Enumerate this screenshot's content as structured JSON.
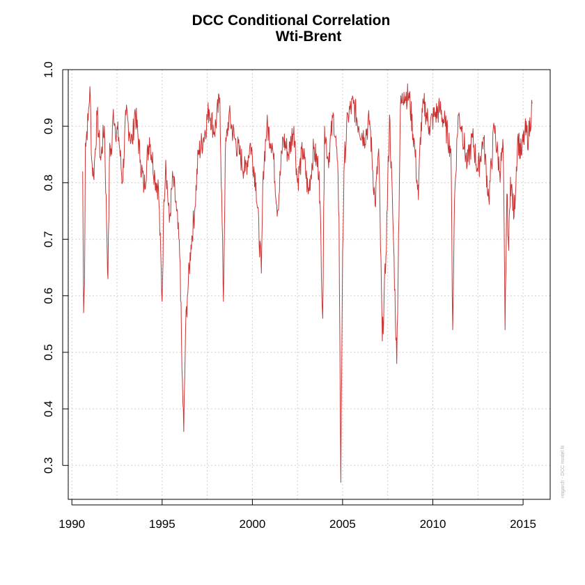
{
  "chart_data": {
    "type": "line",
    "title": "DCC Conditional Correlation",
    "subtitle": "Wti-Brent",
    "xlabel": "",
    "ylabel": "",
    "xlim": [
      1989.8,
      2016.5
    ],
    "ylim": [
      0.24,
      1.0
    ],
    "x_ticks": [
      1990,
      1995,
      2000,
      2005,
      2010,
      2015
    ],
    "y_ticks": [
      0.3,
      0.4,
      0.5,
      0.6,
      0.7,
      0.8,
      0.9,
      1.0
    ],
    "grid": true,
    "legend": "none",
    "watermark": "rmgarch - DCC model fit",
    "series": [
      {
        "color": "#cc3333",
        "x": [
          1990.6,
          1990.65,
          1990.7,
          1990.75,
          1990.9,
          1991.0,
          1991.1,
          1991.2,
          1991.3,
          1991.4,
          1991.5,
          1991.6,
          1991.8,
          1992.0,
          1992.1,
          1992.2,
          1992.3,
          1992.4,
          1992.6,
          1992.8,
          1993.0,
          1993.2,
          1993.35,
          1993.5,
          1993.8,
          1994.0,
          1994.3,
          1994.6,
          1994.8,
          1995.0,
          1995.1,
          1995.2,
          1995.4,
          1995.6,
          1995.8,
          1996.0,
          1996.1,
          1996.2,
          1996.3,
          1996.4,
          1996.6,
          1996.8,
          1997.0,
          1997.3,
          1997.6,
          1997.9,
          1998.2,
          1998.4,
          1998.5,
          1998.7,
          1999.0,
          1999.3,
          1999.6,
          1999.9,
          2000.2,
          2000.5,
          2000.6,
          2000.8,
          2001.1,
          2001.4,
          2001.7,
          2002.0,
          2002.3,
          2002.5,
          2002.8,
          2003.1,
          2003.4,
          2003.7,
          2003.9,
          2004.0,
          2004.2,
          2004.5,
          2004.7,
          2004.8,
          2004.9,
          2005.0,
          2005.1,
          2005.3,
          2005.6,
          2005.9,
          2006.2,
          2006.5,
          2006.8,
          2007.0,
          2007.2,
          2007.4,
          2007.6,
          2007.8,
          2008.0,
          2008.2,
          2008.4,
          2008.7,
          2009.0,
          2009.2,
          2009.3,
          2009.5,
          2009.8,
          2010.1,
          2010.4,
          2010.7,
          2011.0,
          2011.1,
          2011.2,
          2011.4,
          2011.6,
          2011.9,
          2012.2,
          2012.5,
          2012.8,
          2013.1,
          2013.4,
          2013.7,
          2013.9,
          2014.0,
          2014.1,
          2014.2,
          2014.3,
          2014.5,
          2014.7,
          2014.9,
          2015.1,
          2015.3,
          2015.5
        ],
        "values": [
          0.82,
          0.57,
          0.62,
          0.87,
          0.91,
          0.97,
          0.84,
          0.81,
          0.86,
          0.92,
          0.88,
          0.84,
          0.9,
          0.63,
          0.87,
          0.85,
          0.93,
          0.9,
          0.88,
          0.8,
          0.92,
          0.89,
          0.87,
          0.93,
          0.84,
          0.79,
          0.88,
          0.81,
          0.79,
          0.59,
          0.77,
          0.84,
          0.73,
          0.81,
          0.75,
          0.66,
          0.47,
          0.36,
          0.54,
          0.6,
          0.69,
          0.75,
          0.85,
          0.88,
          0.93,
          0.89,
          0.95,
          0.59,
          0.85,
          0.92,
          0.88,
          0.85,
          0.82,
          0.87,
          0.8,
          0.64,
          0.82,
          0.9,
          0.87,
          0.75,
          0.88,
          0.85,
          0.9,
          0.8,
          0.86,
          0.78,
          0.86,
          0.82,
          0.56,
          0.9,
          0.84,
          0.92,
          0.84,
          0.74,
          0.27,
          0.68,
          0.84,
          0.92,
          0.94,
          0.9,
          0.88,
          0.91,
          0.76,
          0.86,
          0.52,
          0.67,
          0.92,
          0.72,
          0.48,
          0.93,
          0.96,
          0.95,
          0.86,
          0.77,
          0.88,
          0.94,
          0.9,
          0.92,
          0.93,
          0.9,
          0.86,
          0.54,
          0.77,
          0.92,
          0.9,
          0.83,
          0.88,
          0.82,
          0.88,
          0.77,
          0.9,
          0.82,
          0.86,
          0.54,
          0.78,
          0.68,
          0.81,
          0.74,
          0.88,
          0.85,
          0.89,
          0.88,
          0.94
        ]
      }
    ]
  }
}
